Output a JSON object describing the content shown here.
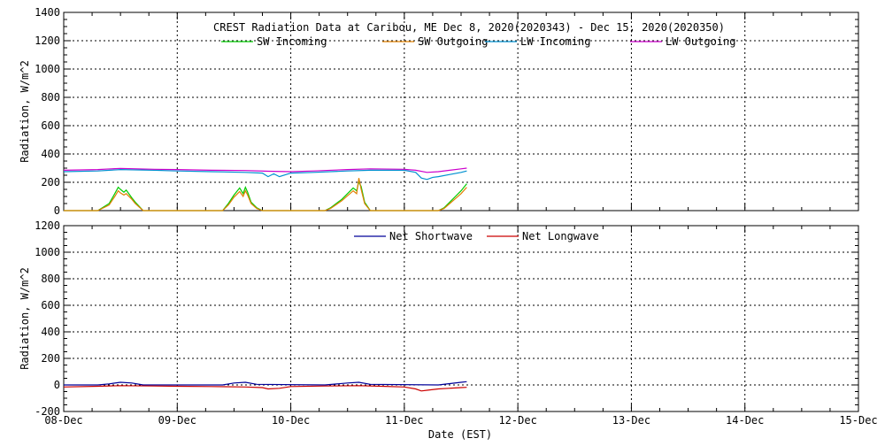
{
  "chart_data": [
    {
      "type": "line",
      "title": "CREST Radiation Data at Caribou, ME   Dec  8, 2020(2020343) - Dec 15, 2020(2020350)",
      "ylabel": "Radiation, W/m^2",
      "xlabel": "",
      "xlim": [
        0,
        7
      ],
      "ylim": [
        0,
        1400
      ],
      "yticks": [
        0,
        200,
        400,
        600,
        800,
        1000,
        1200,
        1400
      ],
      "xtick_labels": [
        "08-Dec",
        "09-Dec",
        "10-Dec",
        "11-Dec",
        "12-Dec",
        "13-Dec",
        "14-Dec",
        "15-Dec"
      ],
      "grid": true,
      "legend": "top",
      "series": [
        {
          "name": "SW Incoming",
          "color": "#00cc00",
          "x": [
            0,
            0.3,
            0.4,
            0.45,
            0.48,
            0.5,
            0.53,
            0.55,
            0.6,
            0.63,
            0.7,
            1.4,
            1.45,
            1.5,
            1.55,
            1.58,
            1.6,
            1.62,
            1.65,
            1.7,
            1.75,
            2.3,
            2.35,
            2.45,
            2.5,
            2.55,
            2.58,
            2.6,
            2.62,
            2.65,
            2.7,
            3.3,
            3.35,
            3.4,
            3.45,
            3.5,
            3.55
          ],
          "y": [
            0,
            0,
            50,
            120,
            165,
            150,
            130,
            145,
            90,
            60,
            0,
            0,
            50,
            110,
            160,
            120,
            165,
            130,
            60,
            20,
            0,
            0,
            20,
            80,
            120,
            160,
            140,
            205,
            170,
            60,
            0,
            0,
            20,
            60,
            100,
            140,
            190
          ]
        },
        {
          "name": "SW Outgoing",
          "color": "#e08000",
          "x": [
            0,
            0.3,
            0.4,
            0.45,
            0.48,
            0.5,
            0.53,
            0.55,
            0.6,
            0.63,
            0.7,
            1.4,
            1.45,
            1.5,
            1.55,
            1.58,
            1.6,
            1.62,
            1.65,
            1.7,
            1.75,
            2.3,
            2.35,
            2.45,
            2.5,
            2.55,
            2.58,
            2.6,
            2.62,
            2.65,
            2.7,
            3.3,
            3.35,
            3.4,
            3.45,
            3.5,
            3.55
          ],
          "y": [
            0,
            0,
            40,
            100,
            140,
            125,
            110,
            120,
            80,
            50,
            0,
            0,
            40,
            95,
            135,
            100,
            140,
            110,
            50,
            15,
            0,
            0,
            15,
            70,
            105,
            140,
            120,
            230,
            150,
            50,
            0,
            0,
            15,
            50,
            85,
            120,
            165
          ]
        },
        {
          "name": "LW Incoming",
          "color": "#0090d0",
          "x": [
            0,
            0.3,
            0.5,
            0.8,
            1.0,
            1.3,
            1.6,
            1.75,
            1.8,
            1.85,
            1.9,
            2.0,
            2.2,
            2.5,
            2.7,
            3.0,
            3.1,
            3.15,
            3.2,
            3.25,
            3.3,
            3.4,
            3.5,
            3.55
          ],
          "y": [
            275,
            280,
            290,
            285,
            280,
            275,
            270,
            265,
            240,
            260,
            240,
            265,
            270,
            280,
            285,
            285,
            270,
            230,
            220,
            235,
            240,
            255,
            270,
            280
          ]
        },
        {
          "name": "LW Outgoing",
          "color": "#cc00cc",
          "x": [
            0,
            0.3,
            0.5,
            0.8,
            1.0,
            1.3,
            1.6,
            1.8,
            2.0,
            2.2,
            2.5,
            2.7,
            3.0,
            3.1,
            3.2,
            3.3,
            3.4,
            3.5,
            3.55
          ],
          "y": [
            285,
            290,
            298,
            292,
            290,
            285,
            283,
            278,
            275,
            280,
            290,
            295,
            292,
            285,
            270,
            275,
            285,
            295,
            300
          ]
        }
      ]
    },
    {
      "type": "line",
      "title": "",
      "ylabel": "Radiation, W/m^2",
      "xlabel": "Date (EST)",
      "xlim": [
        0,
        7
      ],
      "ylim": [
        -200,
        1200
      ],
      "yticks": [
        -200,
        0,
        200,
        400,
        600,
        800,
        1000,
        1200
      ],
      "xtick_labels": [
        "08-Dec",
        "09-Dec",
        "10-Dec",
        "11-Dec",
        "12-Dec",
        "13-Dec",
        "14-Dec",
        "15-Dec"
      ],
      "grid": true,
      "legend": "top",
      "series": [
        {
          "name": "Net Shortwave",
          "color": "#000099",
          "x": [
            0,
            0.3,
            0.4,
            0.5,
            0.6,
            0.7,
            1.4,
            1.5,
            1.6,
            1.7,
            2.3,
            2.5,
            2.6,
            2.7,
            3.3,
            3.4,
            3.5,
            3.55
          ],
          "y": [
            0,
            0,
            8,
            20,
            15,
            0,
            0,
            15,
            20,
            5,
            0,
            15,
            20,
            5,
            0,
            10,
            20,
            25
          ]
        },
        {
          "name": "Net Longwave",
          "color": "#cc0000",
          "x": [
            0,
            0.3,
            0.5,
            0.8,
            1.0,
            1.3,
            1.6,
            1.75,
            1.8,
            1.9,
            2.0,
            2.3,
            2.6,
            2.8,
            3.0,
            3.1,
            3.15,
            3.2,
            3.3,
            3.5,
            3.55
          ],
          "y": [
            -15,
            -10,
            -5,
            -8,
            -10,
            -12,
            -15,
            -20,
            -30,
            -25,
            -12,
            -8,
            -5,
            -10,
            -15,
            -30,
            -45,
            -40,
            -30,
            -20,
            -18
          ]
        }
      ]
    }
  ]
}
